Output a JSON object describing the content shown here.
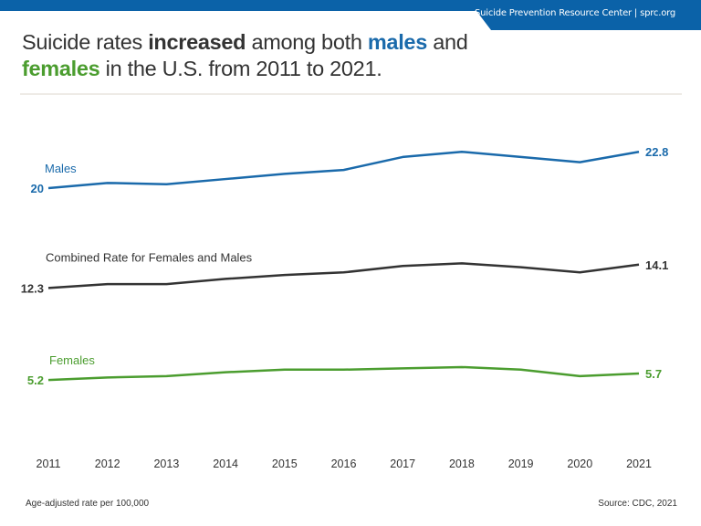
{
  "header": {
    "org_text": "Suicide Prevention Resource Center  |  sprc.org",
    "bar_color": "#0b62a8"
  },
  "title_parts": [
    {
      "text": "Suicide rates ",
      "style": "normal",
      "color": "#333333"
    },
    {
      "text": "increased",
      "style": "bold",
      "color": "#333333"
    },
    {
      "text": " among both ",
      "style": "normal",
      "color": "#333333"
    },
    {
      "text": "males",
      "style": "bold",
      "color": "#1a6aab"
    },
    {
      "text": " and ",
      "style": "normal",
      "color": "#333333"
    },
    {
      "text": "females",
      "style": "bold",
      "color": "#4b9d2f"
    },
    {
      "text": " in the U.S. from 2011 to 2021.",
      "style": "normal",
      "color": "#333333"
    }
  ],
  "footer": {
    "note": "Age-adjusted rate per 100,000",
    "source": "Source: CDC, 2021"
  },
  "chart_data": {
    "type": "line",
    "title": "Suicide rates increased among both males and females in the U.S. from 2011 to 2021.",
    "x": [
      2011,
      2012,
      2013,
      2014,
      2015,
      2016,
      2017,
      2018,
      2019,
      2020,
      2021
    ],
    "ylim": [
      0,
      23
    ],
    "grid": false,
    "legend": "inline labels",
    "ylabel": "Age-adjusted rate per 100,000",
    "series": [
      {
        "name": "Males",
        "color": "#1a6aab",
        "values": [
          20.0,
          20.4,
          20.3,
          20.7,
          21.1,
          21.4,
          22.4,
          22.8,
          22.4,
          22.0,
          22.8
        ],
        "start_label": "20",
        "end_label": "22.8"
      },
      {
        "name": "Combined Rate for Females and Males",
        "color": "#333333",
        "values": [
          12.3,
          12.6,
          12.6,
          13.0,
          13.3,
          13.5,
          14.0,
          14.2,
          13.9,
          13.5,
          14.1
        ],
        "start_label": "12.3",
        "end_label": "14.1"
      },
      {
        "name": "Females",
        "color": "#4b9d2f",
        "values": [
          5.2,
          5.4,
          5.5,
          5.8,
          6.0,
          6.0,
          6.1,
          6.2,
          6.0,
          5.5,
          5.7
        ],
        "start_label": "5.2",
        "end_label": "5.7"
      }
    ]
  }
}
